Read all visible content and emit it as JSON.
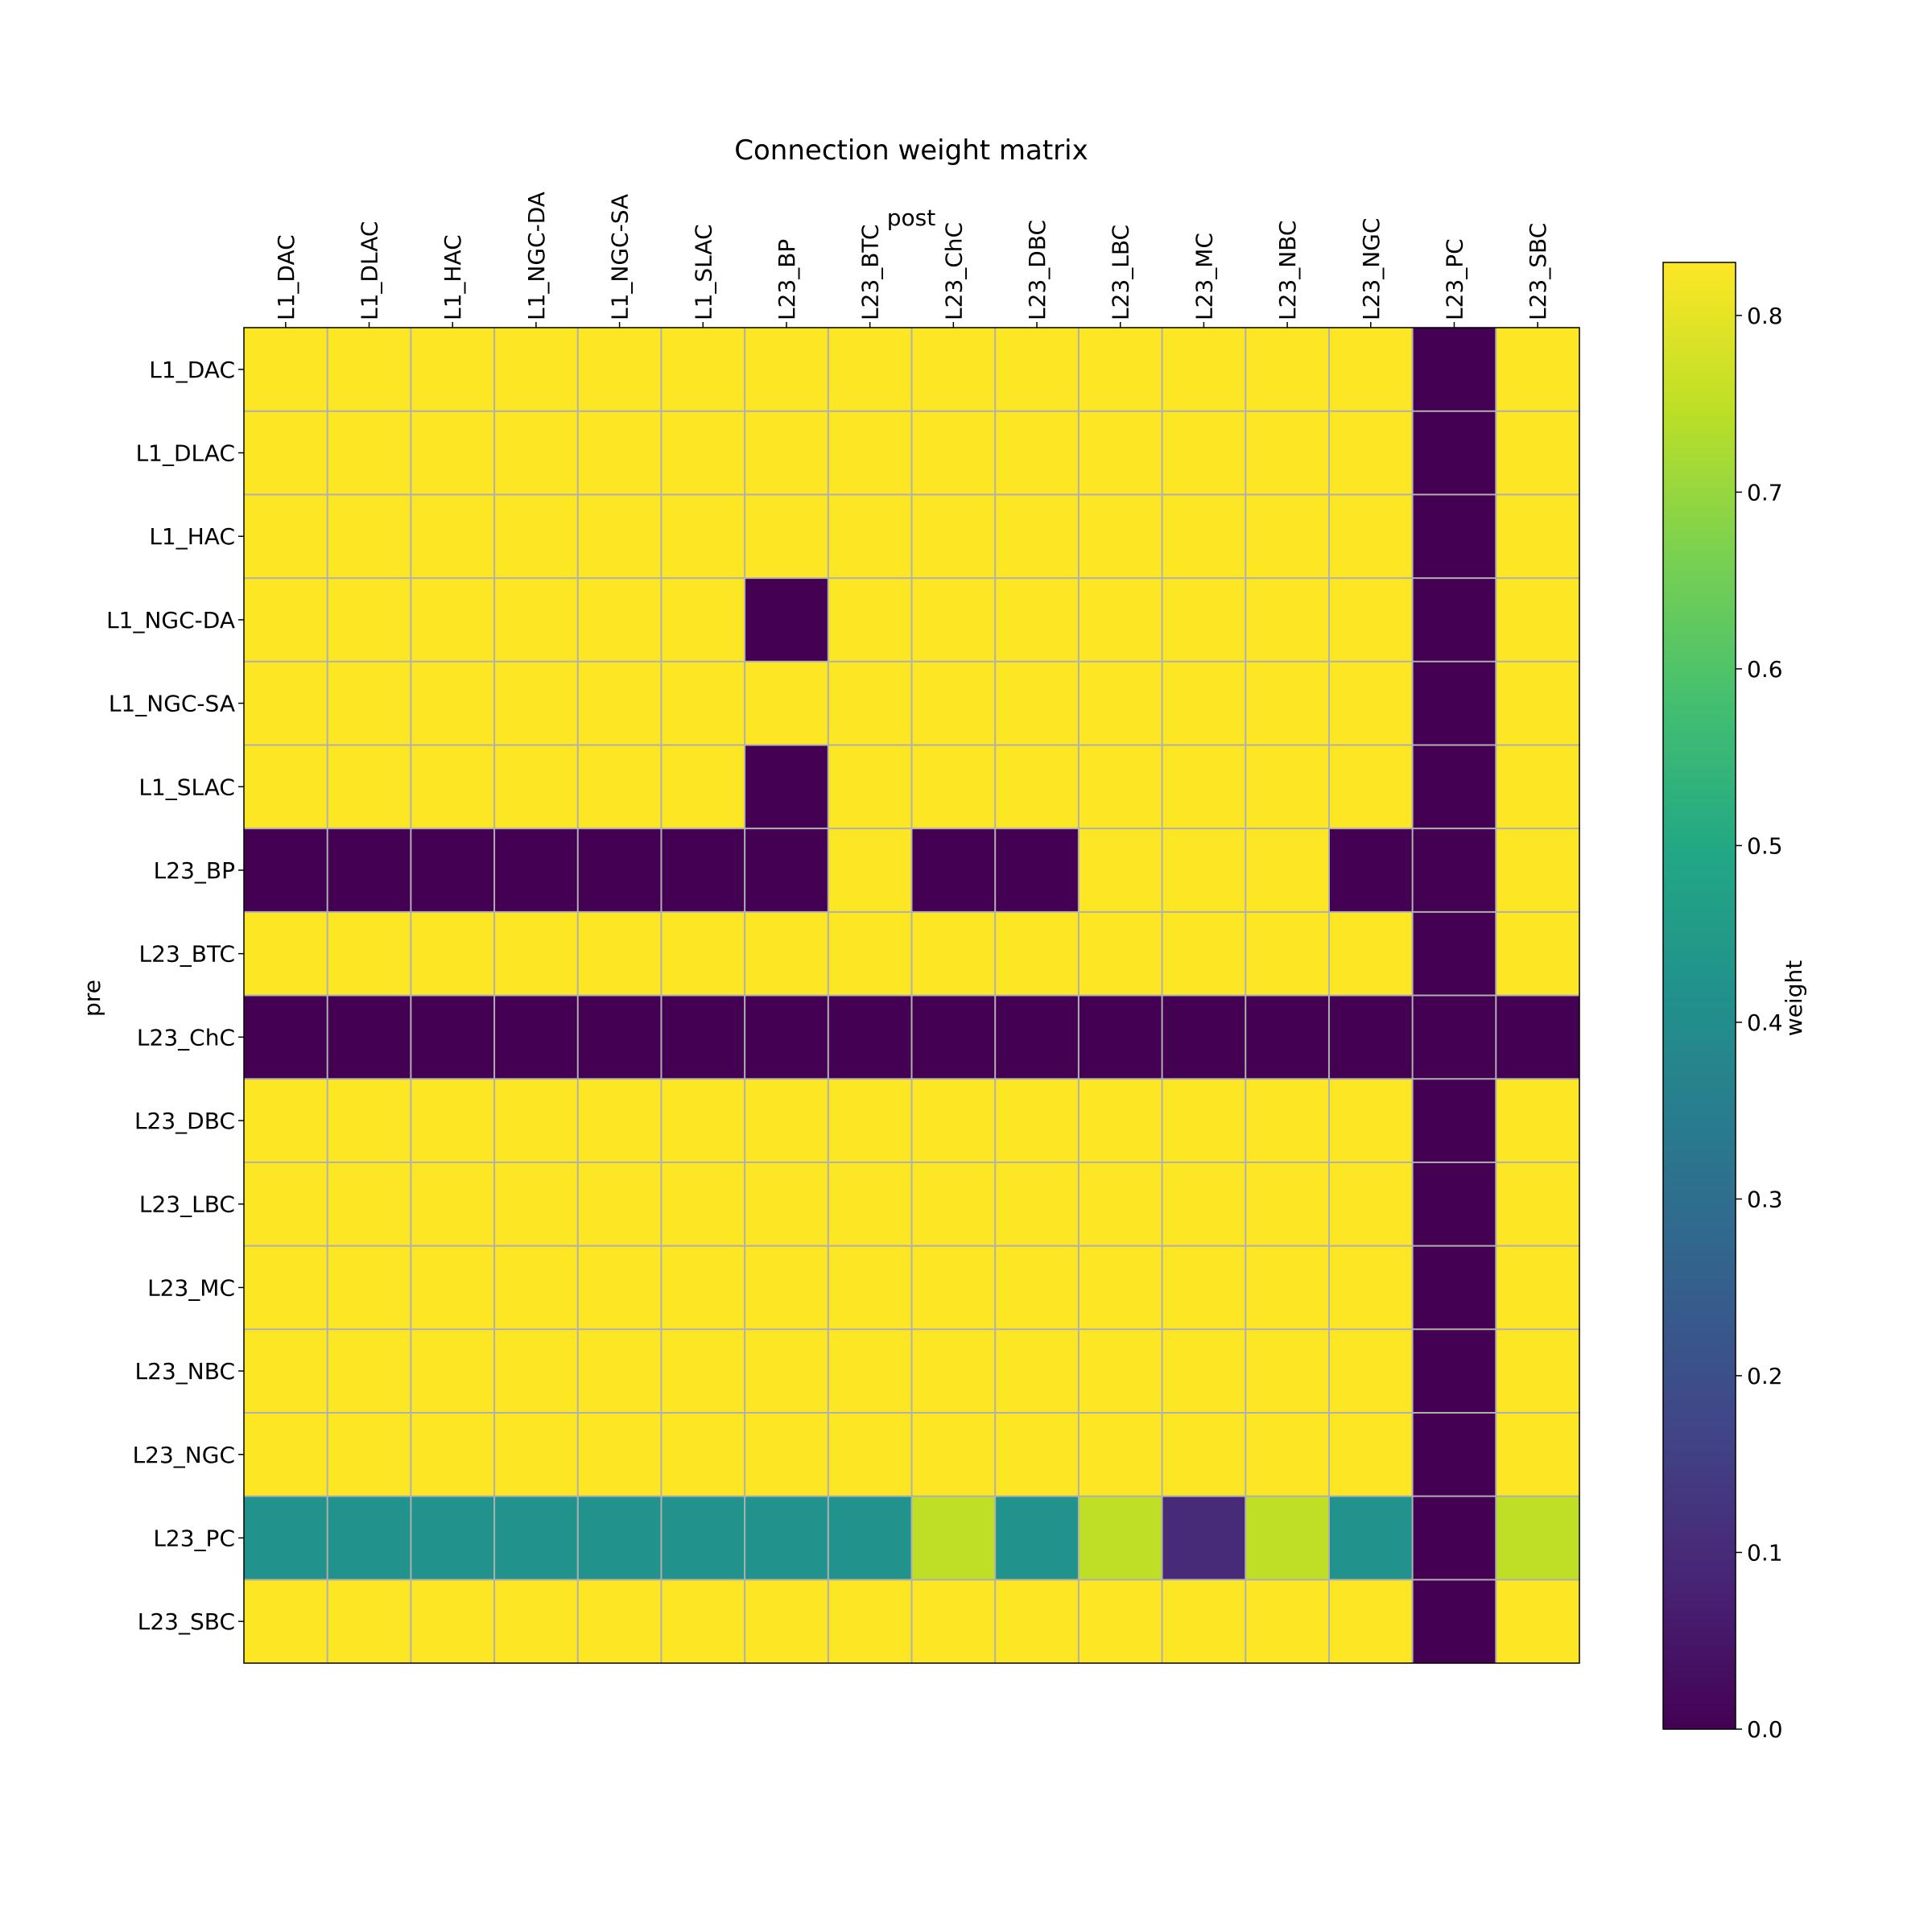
{
  "chart_data": {
    "type": "heatmap",
    "title": "Connection weight matrix",
    "xlabel": "post",
    "ylabel": "pre",
    "x_categories": [
      "L1_DAC",
      "L1_DLAC",
      "L1_HAC",
      "L1_NGC-DA",
      "L1_NGC-SA",
      "L1_SLAC",
      "L23_BP",
      "L23_BTC",
      "L23_ChC",
      "L23_DBC",
      "L23_LBC",
      "L23_MC",
      "L23_NBC",
      "L23_NGC",
      "L23_PC",
      "L23_SBC"
    ],
    "y_categories": [
      "L1_DAC",
      "L1_DLAC",
      "L1_HAC",
      "L1_NGC-DA",
      "L1_NGC-SA",
      "L1_SLAC",
      "L23_BP",
      "L23_BTC",
      "L23_ChC",
      "L23_DBC",
      "L23_LBC",
      "L23_MC",
      "L23_NBC",
      "L23_NGC",
      "L23_PC",
      "L23_SBC"
    ],
    "values": [
      [
        0.83,
        0.83,
        0.83,
        0.83,
        0.83,
        0.83,
        0.83,
        0.83,
        0.83,
        0.83,
        0.83,
        0.83,
        0.83,
        0.83,
        0.0,
        0.83
      ],
      [
        0.83,
        0.83,
        0.83,
        0.83,
        0.83,
        0.83,
        0.83,
        0.83,
        0.83,
        0.83,
        0.83,
        0.83,
        0.83,
        0.83,
        0.0,
        0.83
      ],
      [
        0.83,
        0.83,
        0.83,
        0.83,
        0.83,
        0.83,
        0.83,
        0.83,
        0.83,
        0.83,
        0.83,
        0.83,
        0.83,
        0.83,
        0.0,
        0.83
      ],
      [
        0.83,
        0.83,
        0.83,
        0.83,
        0.83,
        0.83,
        0.0,
        0.83,
        0.83,
        0.83,
        0.83,
        0.83,
        0.83,
        0.83,
        0.0,
        0.83
      ],
      [
        0.83,
        0.83,
        0.83,
        0.83,
        0.83,
        0.83,
        0.83,
        0.83,
        0.83,
        0.83,
        0.83,
        0.83,
        0.83,
        0.83,
        0.0,
        0.83
      ],
      [
        0.83,
        0.83,
        0.83,
        0.83,
        0.83,
        0.83,
        0.0,
        0.83,
        0.83,
        0.83,
        0.83,
        0.83,
        0.83,
        0.83,
        0.0,
        0.83
      ],
      [
        0.0,
        0.0,
        0.0,
        0.0,
        0.0,
        0.0,
        0.0,
        0.83,
        0.0,
        0.0,
        0.83,
        0.83,
        0.83,
        0.0,
        0.0,
        0.83
      ],
      [
        0.83,
        0.83,
        0.83,
        0.83,
        0.83,
        0.83,
        0.83,
        0.83,
        0.83,
        0.83,
        0.83,
        0.83,
        0.83,
        0.83,
        0.0,
        0.83
      ],
      [
        0.0,
        0.0,
        0.0,
        0.0,
        0.0,
        0.0,
        0.0,
        0.0,
        0.0,
        0.0,
        0.0,
        0.0,
        0.0,
        0.0,
        0.0,
        0.0
      ],
      [
        0.83,
        0.83,
        0.83,
        0.83,
        0.83,
        0.83,
        0.83,
        0.83,
        0.83,
        0.83,
        0.83,
        0.83,
        0.83,
        0.83,
        0.0,
        0.83
      ],
      [
        0.83,
        0.83,
        0.83,
        0.83,
        0.83,
        0.83,
        0.83,
        0.83,
        0.83,
        0.83,
        0.83,
        0.83,
        0.83,
        0.83,
        0.0,
        0.83
      ],
      [
        0.83,
        0.83,
        0.83,
        0.83,
        0.83,
        0.83,
        0.83,
        0.83,
        0.83,
        0.83,
        0.83,
        0.83,
        0.83,
        0.83,
        0.0,
        0.83
      ],
      [
        0.83,
        0.83,
        0.83,
        0.83,
        0.83,
        0.83,
        0.83,
        0.83,
        0.83,
        0.83,
        0.83,
        0.83,
        0.83,
        0.83,
        0.0,
        0.83
      ],
      [
        0.83,
        0.83,
        0.83,
        0.83,
        0.83,
        0.83,
        0.83,
        0.83,
        0.83,
        0.83,
        0.83,
        0.83,
        0.83,
        0.83,
        0.0,
        0.83
      ],
      [
        0.42,
        0.42,
        0.42,
        0.42,
        0.42,
        0.42,
        0.42,
        0.42,
        0.75,
        0.42,
        0.75,
        0.1,
        0.75,
        0.42,
        0.0,
        0.75
      ],
      [
        0.83,
        0.83,
        0.83,
        0.83,
        0.83,
        0.83,
        0.83,
        0.83,
        0.83,
        0.83,
        0.83,
        0.83,
        0.83,
        0.83,
        0.0,
        0.83
      ]
    ],
    "colorbar": {
      "label": "weight",
      "colormap": "viridis",
      "range": [
        0.0,
        0.83
      ],
      "ticks": [
        0.0,
        0.1,
        0.2,
        0.3,
        0.4,
        0.5,
        0.6,
        0.7,
        0.8
      ],
      "tick_labels": [
        "0.0",
        "0.1",
        "0.2",
        "0.3",
        "0.4",
        "0.5",
        "0.6",
        "0.7",
        "0.8"
      ]
    },
    "grid": true,
    "grid_color": "#b0b0b0",
    "x_axis_position": "top"
  }
}
